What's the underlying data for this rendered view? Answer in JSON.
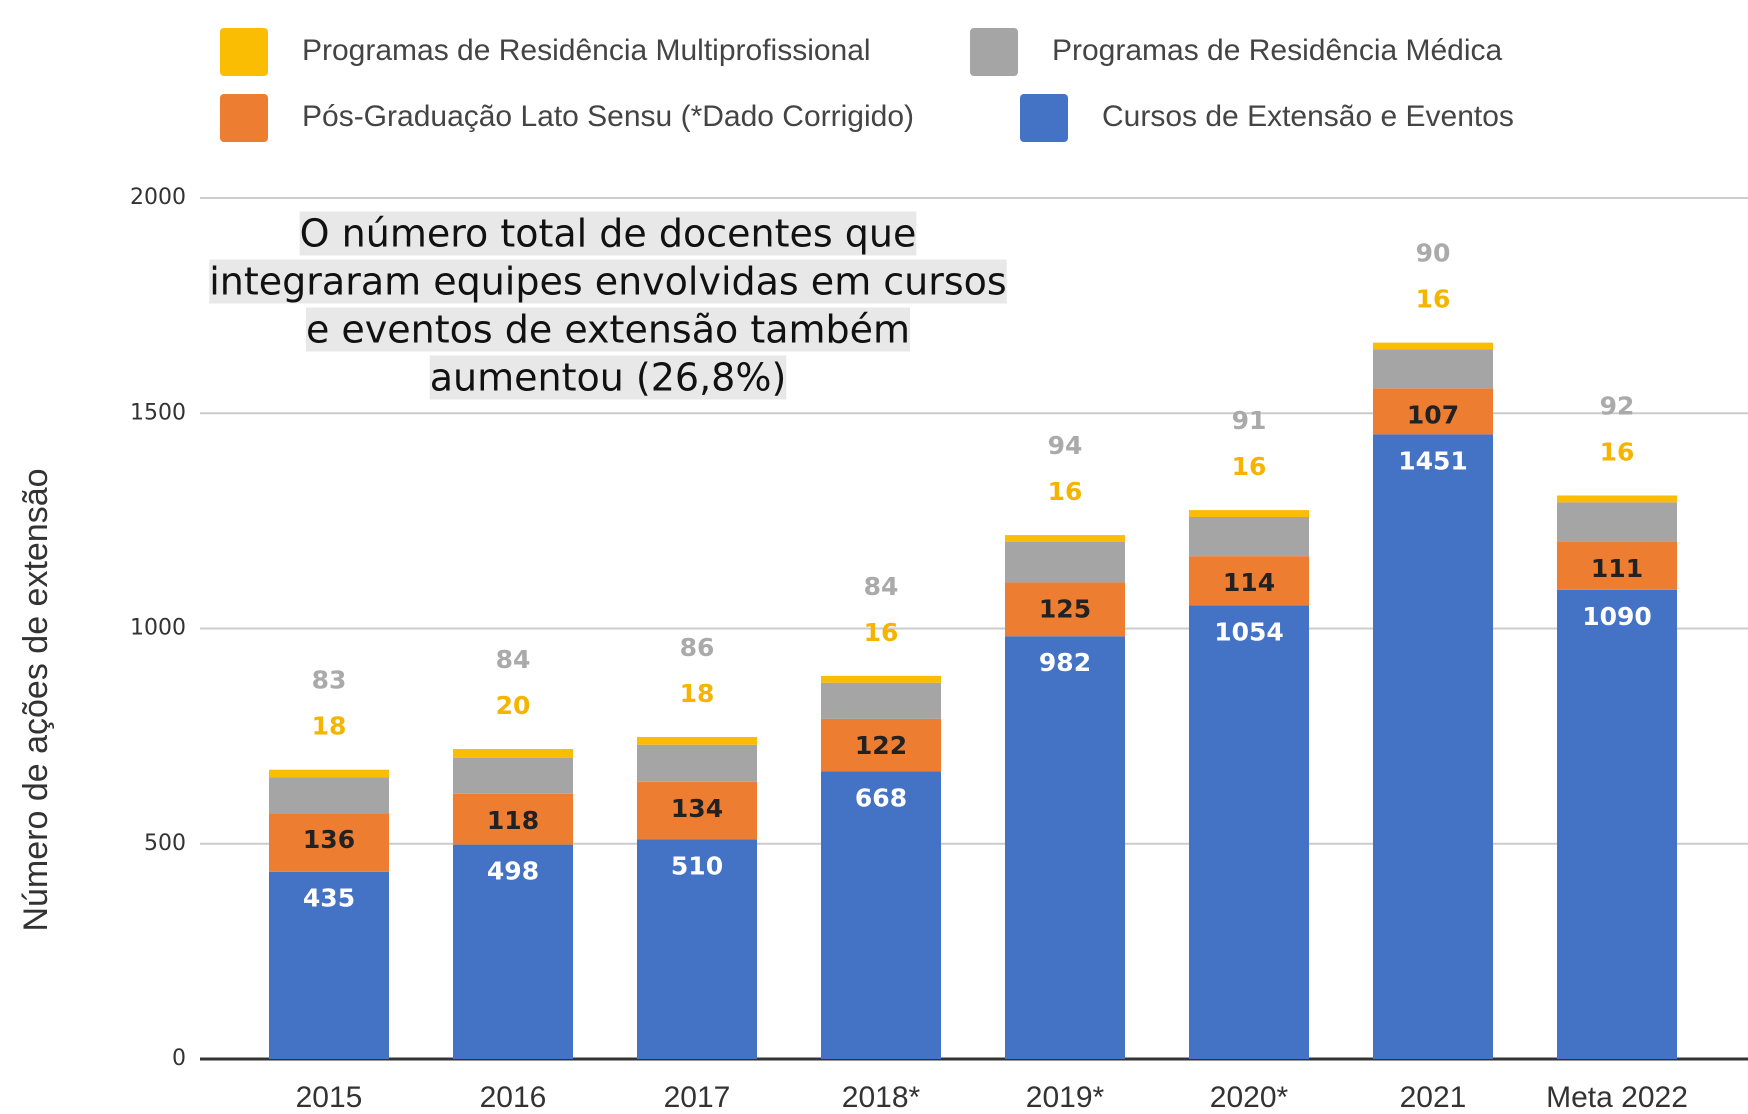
{
  "chart_data": {
    "type": "bar",
    "stacked": true,
    "annotation": [
      "O número total de docentes que",
      "integraram equipes envolvidas em cursos",
      "e eventos de extensão também",
      "aumentou (26,8%)"
    ],
    "ylabel": "Número de ações de extensão",
    "categories": [
      "2015",
      "2016",
      "2017",
      "2018*",
      "2019*",
      "2020*",
      "2021",
      "Meta 2022"
    ],
    "series": [
      {
        "name": "Cursos de Extensão e Eventos",
        "color": "#4472c4",
        "values": [
          435,
          498,
          510,
          668,
          982,
          1054,
          1451,
          1090
        ]
      },
      {
        "name": "Pós-Graduação Lato Sensu (*Dado Corrigido)",
        "color": "#ed7d31",
        "values": [
          136,
          118,
          134,
          122,
          125,
          114,
          107,
          111
        ]
      },
      {
        "name": "Programas de Residência Médica",
        "color": "#a5a5a5",
        "values": [
          83,
          84,
          86,
          84,
          94,
          91,
          90,
          92
        ]
      },
      {
        "name": "Programas de Residência Multiprofissional",
        "color": "#fbbc04",
        "values": [
          18,
          20,
          18,
          16,
          16,
          16,
          16,
          16
        ]
      }
    ],
    "ylim": [
      0,
      2000
    ],
    "yticks": [
      0,
      500,
      1000,
      1500,
      2000
    ],
    "grid": true
  }
}
